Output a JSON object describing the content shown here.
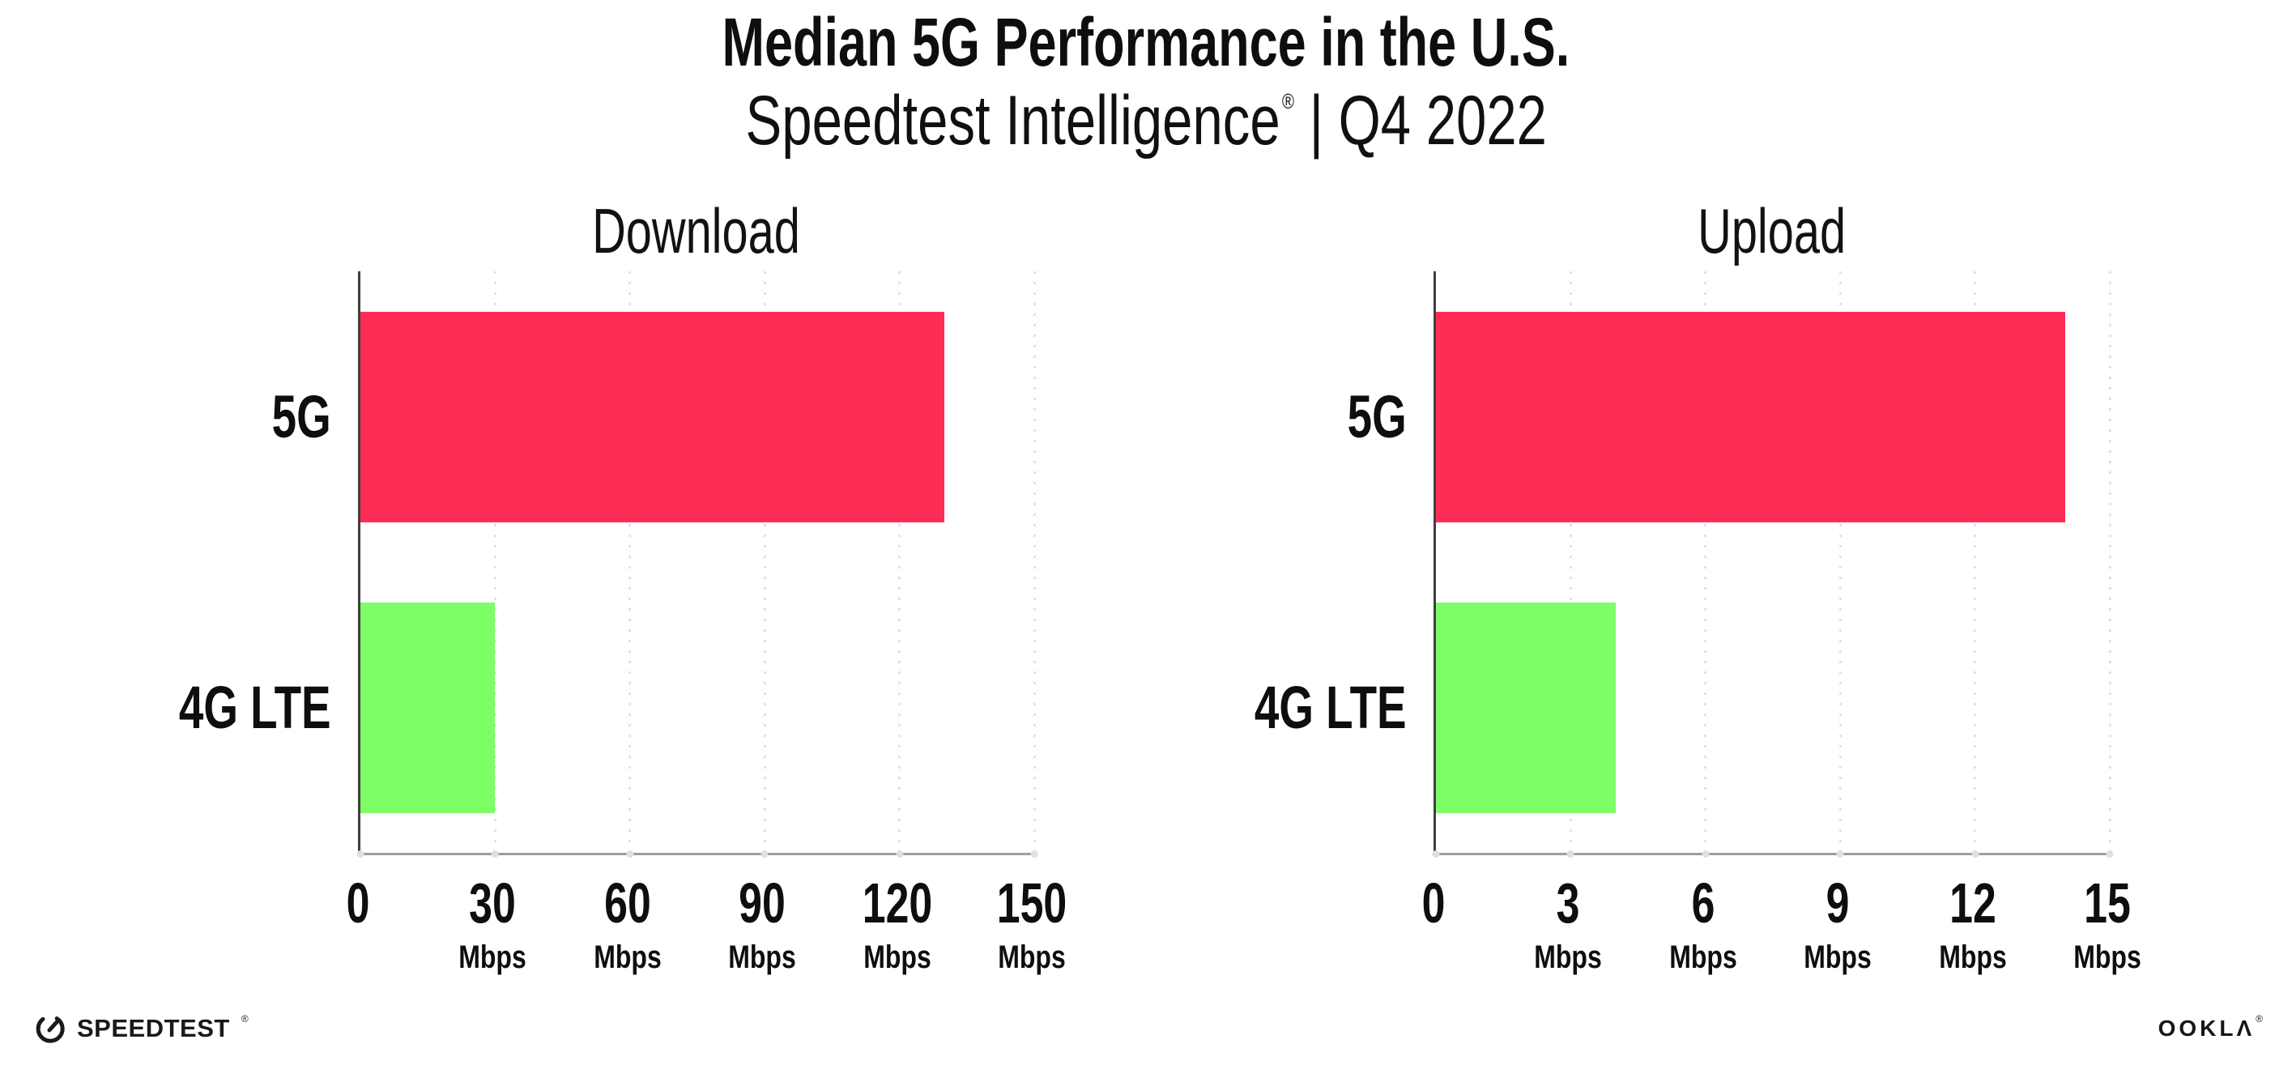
{
  "header": {
    "title": "Median 5G Performance in the U.S.",
    "subtitle_product": "Speedtest Intelligence",
    "subtitle_reg": "®",
    "subtitle_rest": " | Q4 2022"
  },
  "chart_data": [
    {
      "type": "bar",
      "orientation": "horizontal",
      "title": "Download",
      "categories": [
        "5G",
        "4G LTE"
      ],
      "values": [
        130,
        30
      ],
      "unit": "Mbps",
      "xlabel": "",
      "ylabel": "",
      "xlim": [
        0,
        150
      ],
      "xticks": [
        0,
        30,
        60,
        90,
        120,
        150
      ],
      "series_colors": [
        "#ff2d55",
        "#7dfd66"
      ],
      "grid": "vertical-dotted",
      "legend": "none"
    },
    {
      "type": "bar",
      "orientation": "horizontal",
      "title": "Upload",
      "categories": [
        "5G",
        "4G LTE"
      ],
      "values": [
        14,
        4
      ],
      "unit": "Mbps",
      "xlabel": "",
      "ylabel": "",
      "xlim": [
        0,
        15
      ],
      "xticks": [
        0,
        3,
        6,
        9,
        12,
        15
      ],
      "series_colors": [
        "#ff2d55",
        "#7dfd66"
      ],
      "grid": "vertical-dotted",
      "legend": "none"
    }
  ],
  "colors": {
    "bar_5g": "#ff2d55",
    "bar_4g_lte": "#7dfd66",
    "gridline": "#e1e1eb",
    "y_axis_line": "#3f3f3f",
    "x_axis_line": "#9d9d9d",
    "text": "#0e0e0e"
  },
  "footer": {
    "speedtest_icon": "speedometer-gauge-icon",
    "speedtest_label": "SPEEDTEST",
    "speedtest_reg": "®",
    "ookla_label": "OOKLΛ",
    "ookla_reg": "®"
  }
}
